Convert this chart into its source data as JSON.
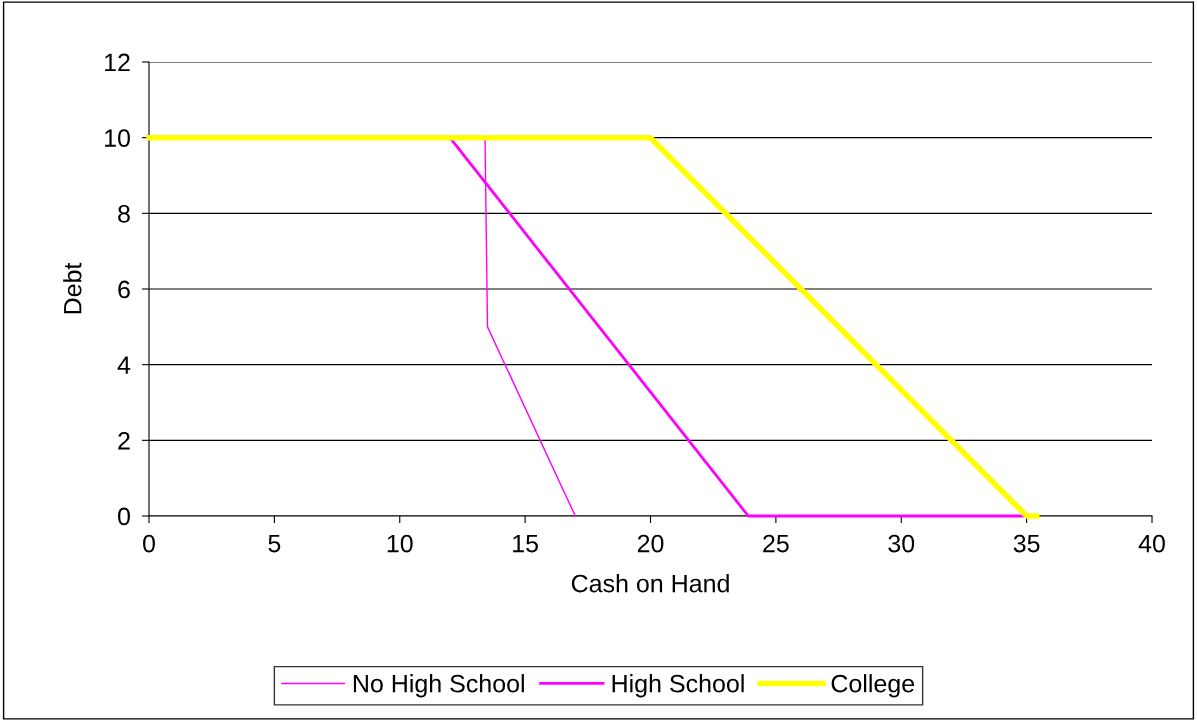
{
  "chart_data": {
    "type": "line",
    "xlabel": "Cash on Hand",
    "ylabel": "Debt",
    "series": [
      {
        "name": "No High School",
        "color": "#ff00ff",
        "x": [
          13.4,
          13.5,
          17
        ],
        "values": [
          10,
          5,
          0
        ]
      },
      {
        "name": "High School",
        "color": "#ff00ff",
        "x": [
          12,
          23.9,
          35
        ],
        "values": [
          10,
          0,
          0
        ]
      },
      {
        "name": "College",
        "color": "#ffff00",
        "x": [
          0,
          20,
          35,
          35.4
        ],
        "values": [
          10,
          10,
          0,
          0
        ]
      }
    ],
    "xlim": [
      0,
      40
    ],
    "xticks": [
      0,
      5,
      10,
      15,
      20,
      25,
      30,
      35,
      40
    ],
    "ylim": [
      0,
      12
    ],
    "yticks": [
      0,
      2,
      4,
      6,
      8,
      10,
      12
    ],
    "grid": "y",
    "legend": "bottom",
    "marker": "none",
    "line_style": "solid"
  }
}
